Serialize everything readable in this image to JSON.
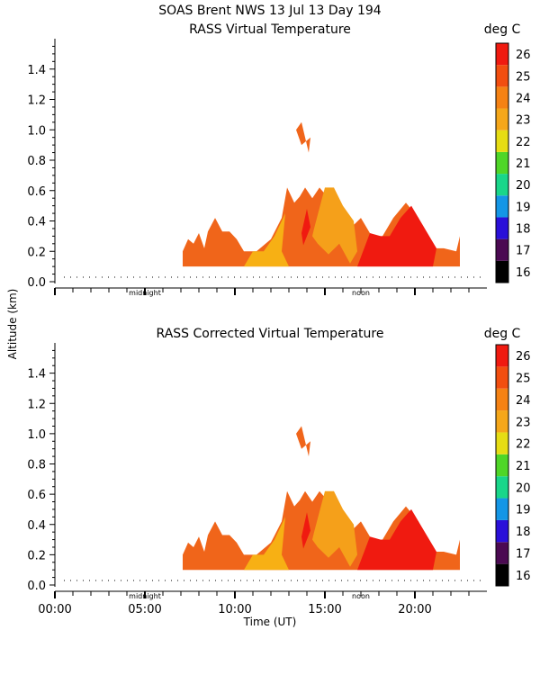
{
  "header": {
    "site_line": "SOAS Brent NWS   13 Jul 13 Day 194"
  },
  "units_label": "deg C",
  "y_axis_label": "Altitude (km)",
  "x_axis_label": "Time (UT)",
  "markers": {
    "midnight": "midnight",
    "noon": "noon"
  },
  "chart_data": [
    {
      "type": "heatmap",
      "title": "RASS Virtual Temperature",
      "xlabel": "Time (UT)",
      "ylabel": "Altitude (km)",
      "xlim": [
        0,
        24
      ],
      "ylim": [
        0,
        1.6
      ],
      "yticks": [
        "0.0",
        "0.2",
        "0.4",
        "0.6",
        "0.8",
        "1.0",
        "1.2",
        "1.4"
      ],
      "xticks": [],
      "colorbar": {
        "label": "deg C",
        "levels": [
          "16",
          "17",
          "18",
          "19",
          "20",
          "21",
          "22",
          "23",
          "24",
          "25",
          "26"
        ],
        "colors": [
          "#000000",
          "#4b0a52",
          "#2a10d9",
          "#1496e6",
          "#19d68a",
          "#4fd628",
          "#e6dd14",
          "#f5a71a",
          "#f58214",
          "#f24e10",
          "#f01a10"
        ]
      },
      "fields": [
        {
          "label": "24-25 C",
          "color": "#f0651a",
          "x": [
            7.1,
            7.4,
            7.7,
            8.0,
            8.3,
            8.5,
            8.9,
            9.3,
            9.7,
            10.1,
            10.5,
            11.2,
            12.0,
            12.6,
            12.9,
            13.3,
            13.6,
            13.9,
            14.3,
            14.7,
            15.2,
            15.8,
            16.4,
            17.0,
            17.6,
            18.2,
            18.8,
            19.5,
            20.2,
            20.9,
            21.6,
            22.3,
            22.5,
            22.5,
            7.1
          ],
          "y": [
            0.2,
            0.28,
            0.25,
            0.32,
            0.22,
            0.33,
            0.42,
            0.33,
            0.33,
            0.28,
            0.2,
            0.2,
            0.28,
            0.42,
            0.62,
            0.52,
            0.56,
            0.62,
            0.55,
            0.62,
            0.55,
            0.42,
            0.35,
            0.42,
            0.3,
            0.3,
            0.42,
            0.52,
            0.42,
            0.22,
            0.22,
            0.2,
            0.3,
            0.1,
            0.1
          ]
        },
        {
          "label": "22-23 C",
          "color": "#f7b014",
          "x": [
            10.5,
            11.0,
            11.6,
            12.2,
            12.8,
            12.6,
            13.0,
            13.5
          ],
          "y": [
            0.1,
            0.2,
            0.2,
            0.3,
            0.45,
            0.2,
            0.1,
            0.1
          ]
        },
        {
          "label": "23-24 C",
          "color": "#f5a01a",
          "x": [
            14.4,
            15.0,
            15.5,
            16.0,
            16.6,
            16.8,
            16.4,
            15.8,
            15.2,
            14.6,
            14.3
          ],
          "y": [
            0.35,
            0.62,
            0.62,
            0.5,
            0.4,
            0.2,
            0.12,
            0.25,
            0.18,
            0.25,
            0.3
          ]
        },
        {
          "label": "25-26 C",
          "color": "#f01a10",
          "x": [
            16.8,
            17.5,
            18.1,
            18.6,
            19.2,
            19.8,
            20.5,
            21.2,
            21.0,
            20.0,
            19.0,
            18.0,
            17.2,
            16.8
          ],
          "y": [
            0.1,
            0.32,
            0.3,
            0.3,
            0.42,
            0.5,
            0.36,
            0.22,
            0.1,
            0.1,
            0.1,
            0.1,
            0.1,
            0.1
          ]
        },
        {
          "label": "25-26 C",
          "color": "#f01a10",
          "x": [
            13.8,
            14.2,
            14.0,
            13.7
          ],
          "y": [
            0.24,
            0.36,
            0.48,
            0.32
          ]
        },
        {
          "label": "24-25 C",
          "color": "#f0651a",
          "x": [
            13.4,
            13.7,
            14.1,
            14.2,
            13.7
          ],
          "y": [
            1.0,
            1.05,
            0.85,
            0.95,
            0.9
          ]
        }
      ]
    },
    {
      "type": "heatmap",
      "title": "RASS Corrected Virtual Temperature",
      "xlabel": "Time (UT)",
      "ylabel": "Altitude (km)",
      "xlim": [
        0,
        24
      ],
      "ylim": [
        0,
        1.6
      ],
      "yticks": [
        "0.0",
        "0.2",
        "0.4",
        "0.6",
        "0.8",
        "1.0",
        "1.2",
        "1.4"
      ],
      "xticks": [
        "00:00",
        "05:00",
        "10:00",
        "15:00",
        "20:00"
      ],
      "colorbar": {
        "label": "deg C",
        "levels": [
          "16",
          "17",
          "18",
          "19",
          "20",
          "21",
          "22",
          "23",
          "24",
          "25",
          "26"
        ],
        "colors": [
          "#000000",
          "#4b0a52",
          "#2a10d9",
          "#1496e6",
          "#19d68a",
          "#4fd628",
          "#e6dd14",
          "#f5a71a",
          "#f58214",
          "#f24e10",
          "#f01a10"
        ]
      },
      "fields": [
        {
          "label": "24-25 C",
          "color": "#f0651a",
          "x": [
            7.1,
            7.4,
            7.7,
            8.0,
            8.3,
            8.5,
            8.9,
            9.3,
            9.7,
            10.1,
            10.5,
            11.2,
            12.0,
            12.6,
            12.9,
            13.3,
            13.6,
            13.9,
            14.3,
            14.7,
            15.2,
            15.8,
            16.4,
            17.0,
            17.6,
            18.2,
            18.8,
            19.5,
            20.2,
            20.9,
            21.6,
            22.3,
            22.5,
            22.5,
            7.1
          ],
          "y": [
            0.2,
            0.28,
            0.25,
            0.32,
            0.22,
            0.33,
            0.42,
            0.33,
            0.33,
            0.28,
            0.2,
            0.2,
            0.28,
            0.42,
            0.62,
            0.52,
            0.56,
            0.62,
            0.55,
            0.62,
            0.55,
            0.42,
            0.35,
            0.42,
            0.3,
            0.3,
            0.42,
            0.52,
            0.42,
            0.22,
            0.22,
            0.2,
            0.3,
            0.1,
            0.1
          ]
        },
        {
          "label": "22-23 C",
          "color": "#f7b014",
          "x": [
            10.5,
            11.0,
            11.6,
            12.2,
            12.8,
            12.6,
            13.0,
            13.5
          ],
          "y": [
            0.1,
            0.2,
            0.2,
            0.3,
            0.45,
            0.2,
            0.1,
            0.1
          ]
        },
        {
          "label": "23-24 C",
          "color": "#f5a01a",
          "x": [
            14.4,
            15.0,
            15.5,
            16.0,
            16.6,
            16.8,
            16.4,
            15.8,
            15.2,
            14.6,
            14.3
          ],
          "y": [
            0.35,
            0.62,
            0.62,
            0.5,
            0.4,
            0.2,
            0.12,
            0.25,
            0.18,
            0.25,
            0.3
          ]
        },
        {
          "label": "25-26 C",
          "color": "#f01a10",
          "x": [
            16.8,
            17.5,
            18.1,
            18.6,
            19.2,
            19.8,
            20.5,
            21.2,
            21.0,
            20.0,
            19.0,
            18.0,
            17.2,
            16.8
          ],
          "y": [
            0.1,
            0.32,
            0.3,
            0.3,
            0.42,
            0.5,
            0.36,
            0.22,
            0.1,
            0.1,
            0.1,
            0.1,
            0.1,
            0.1
          ]
        },
        {
          "label": "25-26 C",
          "color": "#f01a10",
          "x": [
            13.8,
            14.2,
            14.0,
            13.7
          ],
          "y": [
            0.24,
            0.36,
            0.48,
            0.32
          ]
        },
        {
          "label": "24-25 C",
          "color": "#f0651a",
          "x": [
            13.4,
            13.7,
            14.1,
            14.2,
            13.7
          ],
          "y": [
            1.0,
            1.05,
            0.85,
            0.95,
            0.9
          ]
        }
      ]
    }
  ]
}
